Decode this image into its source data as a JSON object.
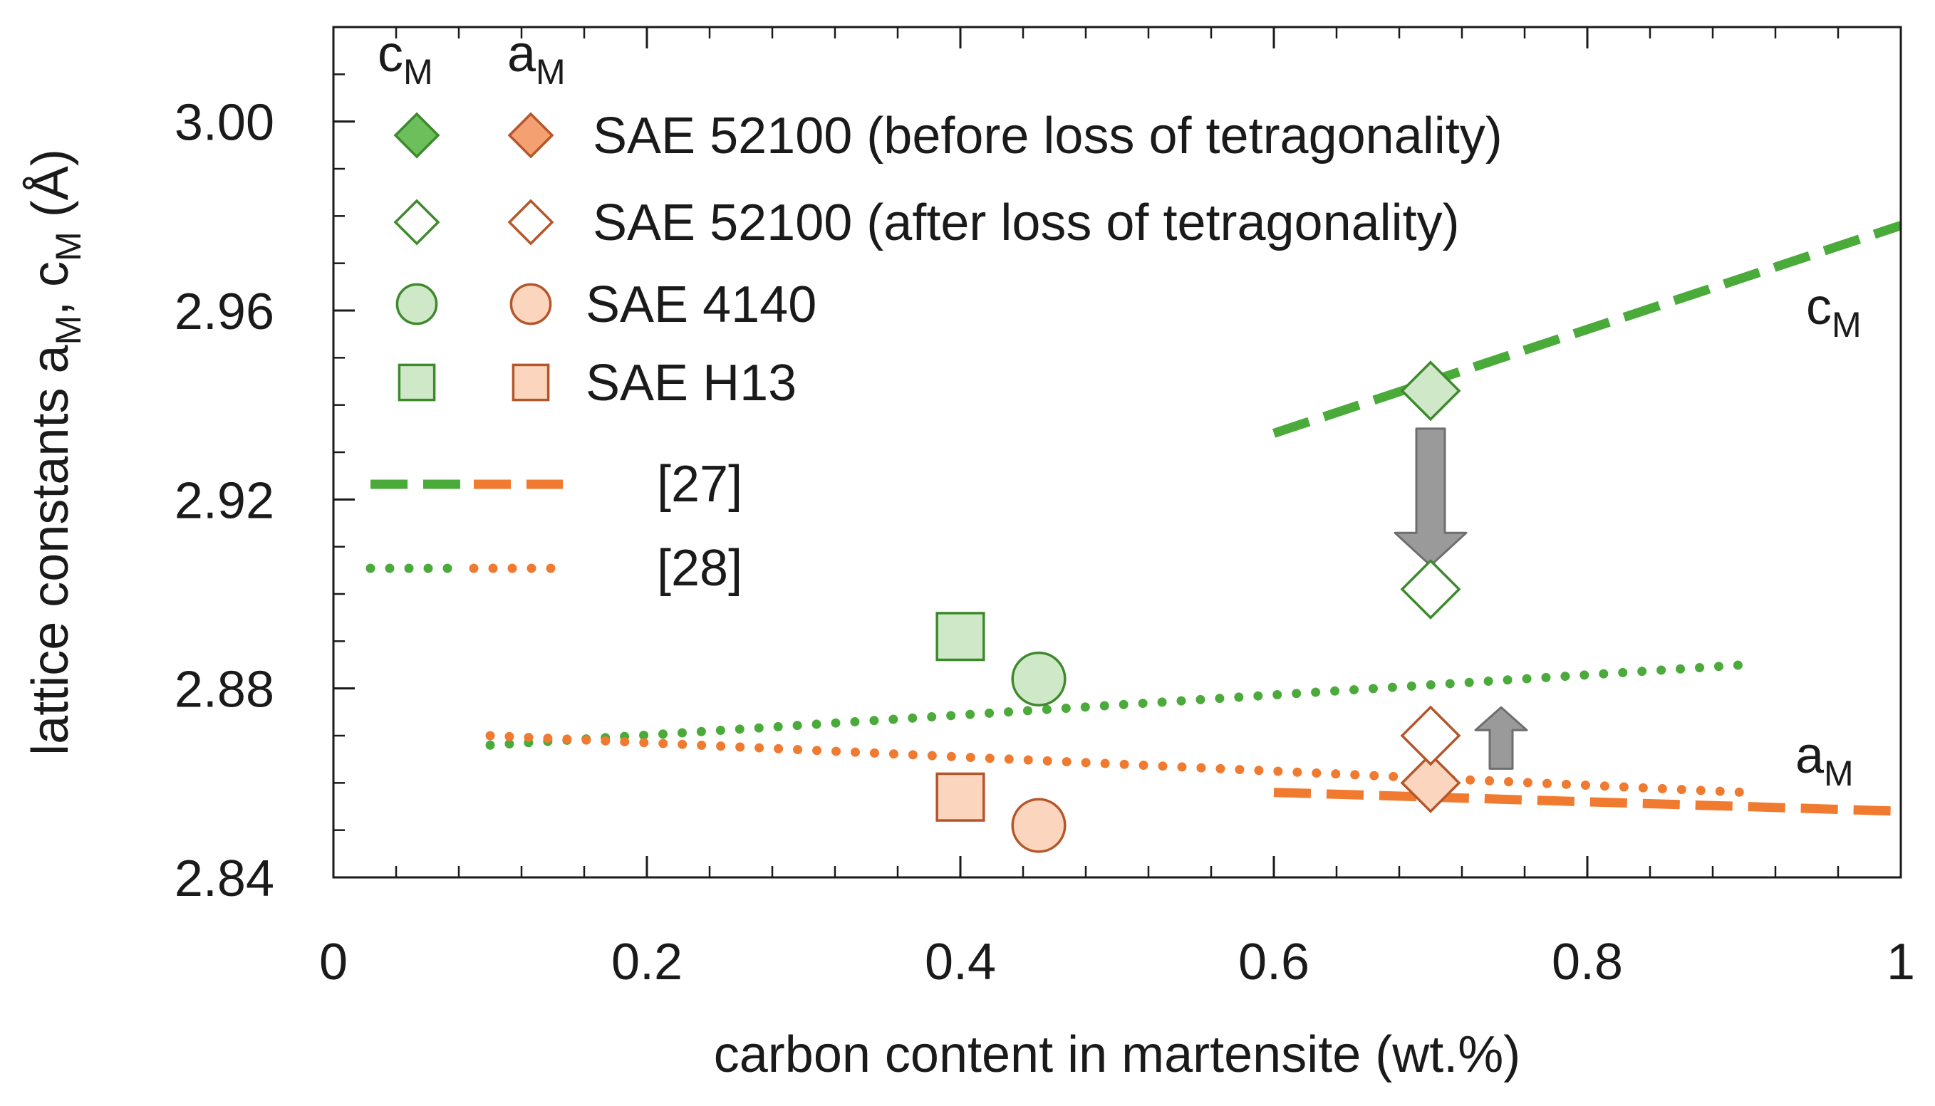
{
  "chart_data": {
    "type": "scatter",
    "title": "",
    "xlabel": "carbon content in martensite (wt.%)",
    "ylabel": {
      "prefix": "lattice constants a",
      "sub1": "M",
      "mid": ", c",
      "sub2": "M",
      "suffix": " (Å)"
    },
    "xlim": [
      0,
      1
    ],
    "ylim": [
      2.84,
      3.02
    ],
    "x_ticks": [
      {
        "value": 0,
        "label": "0"
      },
      {
        "value": 0.2,
        "label": "0.2"
      },
      {
        "value": 0.4,
        "label": "0.4"
      },
      {
        "value": 0.6,
        "label": "0.6"
      },
      {
        "value": 0.8,
        "label": "0.8"
      },
      {
        "value": 1,
        "label": "1"
      }
    ],
    "y_ticks": [
      {
        "value": 2.84,
        "label": "2.84"
      },
      {
        "value": 2.88,
        "label": "2.88"
      },
      {
        "value": 2.92,
        "label": "2.92"
      },
      {
        "value": 2.96,
        "label": "2.96"
      },
      {
        "value": 3.0,
        "label": "3.00"
      }
    ],
    "x_minor_step": 0.04,
    "y_minor_step": 0.01,
    "grid": false,
    "colors": {
      "c_stroke": "#3d8a2c",
      "c_fill": "#6cbf5a",
      "c_fill_light": "#cfe9c8",
      "a_stroke": "#b5562a",
      "a_fill": "#f4a070",
      "a_fill_light": "#fbd5bd",
      "c_line": "#4aaa3a",
      "a_line": "#f07a30",
      "arrow": "#9a9a9a",
      "arrow_stroke": "#6e6e6e"
    },
    "series": [
      {
        "name": "SAE 52100 (before loss of tetragonality)",
        "marker": "diamond",
        "points": [
          {
            "param": "c",
            "x": 0.7,
            "y": 2.943
          },
          {
            "param": "a",
            "x": 0.7,
            "y": 2.86
          }
        ]
      },
      {
        "name": "SAE 52100 (after loss of tetragonality)",
        "marker": "diamond-open",
        "points": [
          {
            "param": "c",
            "x": 0.7,
            "y": 2.901
          },
          {
            "param": "a",
            "x": 0.7,
            "y": 2.87
          }
        ]
      },
      {
        "name": "SAE 4140",
        "marker": "circle",
        "points": [
          {
            "param": "c",
            "x": 0.45,
            "y": 2.882
          },
          {
            "param": "a",
            "x": 0.45,
            "y": 2.851
          }
        ]
      },
      {
        "name": "SAE H13",
        "marker": "square",
        "points": [
          {
            "param": "c",
            "x": 0.4,
            "y": 2.891
          },
          {
            "param": "a",
            "x": 0.4,
            "y": 2.857
          }
        ]
      }
    ],
    "lines": [
      {
        "ref": "[27]",
        "param": "c",
        "style": "dashed",
        "x": [
          0.6,
          1.0
        ],
        "y": [
          2.934,
          2.978
        ]
      },
      {
        "ref": "[27]",
        "param": "a",
        "style": "dashed",
        "x": [
          0.6,
          1.0
        ],
        "y": [
          2.858,
          2.854
        ]
      },
      {
        "ref": "[28]",
        "param": "c",
        "style": "dotted",
        "x": [
          0.1,
          0.9
        ],
        "y": [
          2.868,
          2.885
        ]
      },
      {
        "ref": "[28]",
        "param": "a",
        "style": "dotted",
        "x": [
          0.1,
          0.9
        ],
        "y": [
          2.87,
          2.858
        ]
      }
    ],
    "arrows": [
      {
        "direction": "down",
        "x": 0.7,
        "from_y": 2.935,
        "to_y": 2.906,
        "size": "large"
      },
      {
        "direction": "up",
        "x": 0.745,
        "from_y": 2.863,
        "to_y": 2.876,
        "size": "small"
      }
    ],
    "line_labels": [
      {
        "param": "c",
        "letter": "c",
        "sub": "M"
      },
      {
        "param": "a",
        "letter": "a",
        "sub": "M"
      }
    ],
    "legend": {
      "placement": "top-left",
      "headers": [
        {
          "letter": "c",
          "sub": "M"
        },
        {
          "letter": "a",
          "sub": "M"
        }
      ],
      "line_refs": [
        "[27]",
        "[28]"
      ]
    }
  }
}
